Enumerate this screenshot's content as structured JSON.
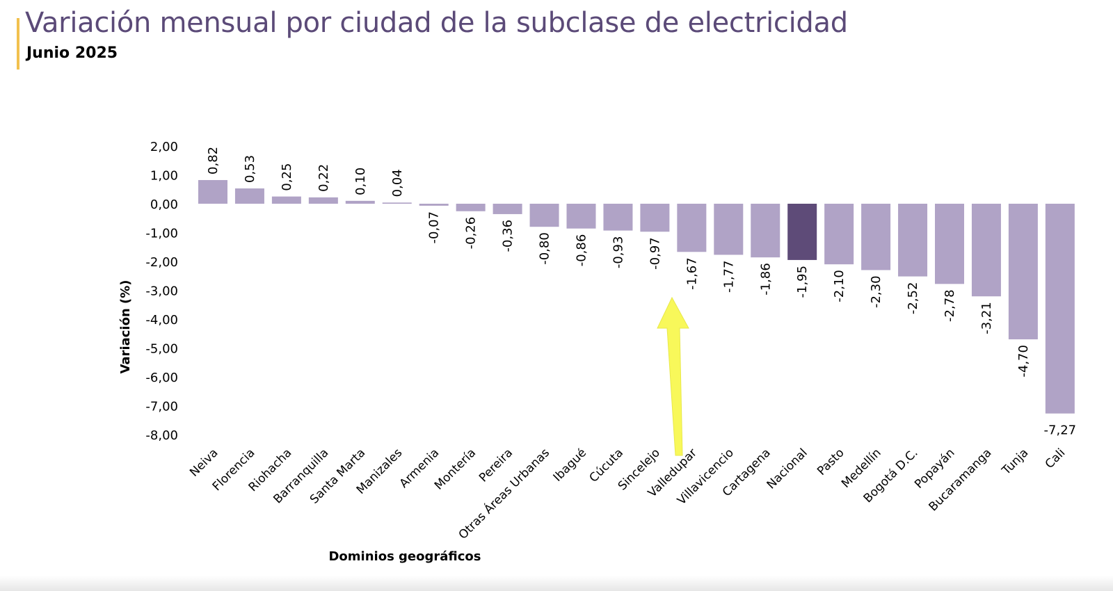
{
  "header": {
    "title": "Variación mensual por ciudad de la subclase de electricidad",
    "subtitle": "Junio 2025"
  },
  "colors": {
    "bar": "#b0a3c6",
    "highlight_bar": "#5e4b78",
    "title": "#5b4a78",
    "accent_line": "#f2c14e",
    "arrow": "#f8f85a"
  },
  "chart_data": {
    "type": "bar",
    "title": "Variación mensual por ciudad de la subclase de electricidad",
    "subtitle": "Junio 2025",
    "xlabel": "Dominios geográficos",
    "ylabel": "Variación (%)",
    "ylim": [
      -8,
      2
    ],
    "yticks": [
      "2,00",
      "1,00",
      "0,00",
      "-1,00",
      "-2,00",
      "-3,00",
      "-4,00",
      "-5,00",
      "-6,00",
      "-7,00",
      "-8,00"
    ],
    "ytick_values": [
      2,
      1,
      0,
      -1,
      -2,
      -3,
      -4,
      -5,
      -6,
      -7,
      -8
    ],
    "grid": false,
    "highlight": "Nacional",
    "annotation": {
      "type": "arrow",
      "points_to": "Valledupar"
    },
    "categories": [
      "Neiva",
      "Florencia",
      "Riohacha",
      "Barranquilla",
      "Santa Marta",
      "Manizales",
      "Armenia",
      "Montería",
      "Pereira",
      "Otras Áreas Urbanas",
      "Ibagué",
      "Cúcuta",
      "Sincelejo",
      "Valledupar",
      "Villavicencio",
      "Cartagena",
      "Nacional",
      "Pasto",
      "Medellín",
      "Bogotá D.C.",
      "Popayán",
      "Bucaramanga",
      "Tunja",
      "Cali"
    ],
    "values": [
      0.82,
      0.53,
      0.25,
      0.22,
      0.1,
      0.04,
      -0.07,
      -0.26,
      -0.36,
      -0.8,
      -0.86,
      -0.93,
      -0.97,
      -1.67,
      -1.77,
      -1.86,
      -1.95,
      -2.1,
      -2.3,
      -2.52,
      -2.78,
      -3.21,
      -4.7,
      -7.27
    ],
    "data_labels": [
      "0,82",
      "0,53",
      "0,25",
      "0,22",
      "0,10",
      "0,04",
      "-0,07",
      "-0,26",
      "-0,36",
      "-0,80",
      "-0,86",
      "-0,93",
      "-0,97",
      "-1,67",
      "-1,77",
      "-1,86",
      "-1,95",
      "-2,10",
      "-2,30",
      "-2,52",
      "-2,78",
      "-3,21",
      "-4,70",
      "-7,27"
    ]
  }
}
